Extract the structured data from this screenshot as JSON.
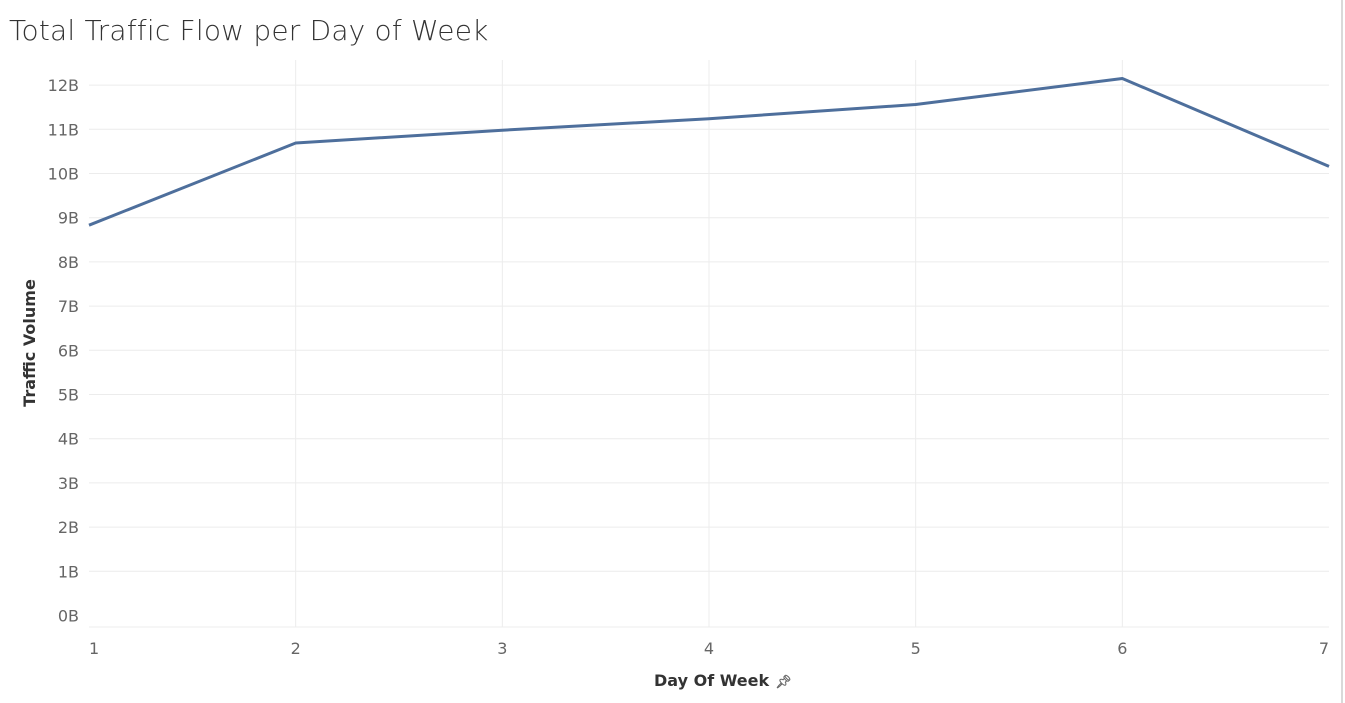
{
  "title": "Total Traffic Flow per Day of Week",
  "colors": {
    "line": "#4e6f9c",
    "grid": "#ececec",
    "tick": "#666666"
  },
  "chart_data": {
    "type": "line",
    "title": "Total Traffic Flow per Day of Week",
    "xlabel": "Day Of Week",
    "ylabel": "Traffic Volume",
    "x": [
      1,
      2,
      3,
      4,
      5,
      6,
      7
    ],
    "series": [
      {
        "values": [
          8.83,
          10.69,
          10.98,
          11.24,
          11.56,
          12.15,
          10.16
        ]
      }
    ],
    "y_unit": "billions",
    "ylim": [
      0,
      12.6
    ],
    "yticks": [
      0,
      1,
      2,
      3,
      4,
      5,
      6,
      7,
      8,
      9,
      10,
      11,
      12
    ],
    "ytick_labels": [
      "0B",
      "1B",
      "2B",
      "3B",
      "4B",
      "5B",
      "6B",
      "7B",
      "8B",
      "9B",
      "10B",
      "11B",
      "12B"
    ],
    "xtick_labels": [
      "1",
      "2",
      "3",
      "4",
      "5",
      "6",
      "7"
    ],
    "grid": true,
    "x_axis_pinned": true,
    "x_axis_icon": "pin-icon"
  }
}
